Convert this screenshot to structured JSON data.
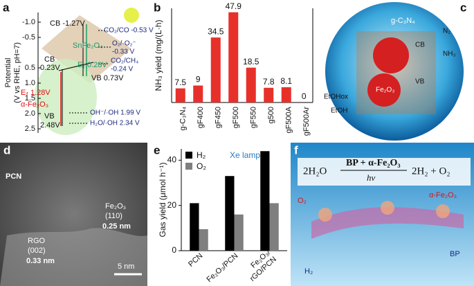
{
  "chart_data": [
    {
      "type": "bar",
      "y_label": "NH₃ yield (mg/(L·h)",
      "categories": [
        "g-C₃N₄",
        "gF400",
        "gF450",
        "gF500",
        "gF550",
        "g500",
        "gF500A",
        "gF500Ar"
      ],
      "values": [
        7.5,
        9,
        34.5,
        47.9,
        18.5,
        7.8,
        8.1,
        0
      ],
      "color": "#e8302a",
      "ylim": [
        0,
        50
      ]
    },
    {
      "type": "bar",
      "y_label": "Gas yield (μmol h⁻¹)",
      "annotation": "Xe lamp",
      "categories": [
        "PCN",
        "Fe₂O₃/PCN",
        "Fe₂O₃/rGO/PCN"
      ],
      "series": [
        {
          "name": "H₂",
          "color": "#000000",
          "values": [
            21,
            33,
            44
          ]
        },
        {
          "name": "O₂",
          "color": "#7f7f7f",
          "values": [
            9.5,
            16,
            21
          ]
        }
      ],
      "ylim": [
        0,
        45
      ],
      "yticks": [
        0,
        20,
        40
      ],
      "legend": "upper left"
    }
  ],
  "figure": {
    "panel_labels": [
      "a",
      "b",
      "c",
      "d",
      "e",
      "f"
    ],
    "panel_a": {
      "axis_label": [
        "Potential",
        "(V vs RHE, pH=7)"
      ],
      "ticks": [
        "-1.0",
        "-0.5",
        "0.5",
        "1.0",
        "1.5",
        "2.0",
        "2.5"
      ],
      "texts": [
        "CB -1.27V",
        "SnFe₂O₄",
        "CO₂/CO -0.53 V",
        "O₂/·O₂⁻",
        "-0.33 V",
        "CO₂/CH₄",
        "-0.24 V",
        "E",
        "f",
        "0.28V",
        "CB",
        "0.23V",
        "VB 0.73V",
        "E",
        "f",
        "1.28V",
        "α-Fe₂O₃",
        "VB",
        "2.48V",
        "OH⁻/·OH 1.99 V",
        "H₂O/·OH 2.34 V"
      ]
    },
    "panel_c": {
      "texts": [
        "g-C₃N₄",
        "N₂",
        "NH₃",
        "EtOHox",
        "EtOH",
        "CB",
        "VB",
        "Fe₂O₃"
      ]
    },
    "panel_d": {
      "texts": [
        "PCN",
        "RGO",
        "(002)",
        "0.33 nm",
        "Fe₂O₃",
        "(110)",
        "0.25 nm",
        "5 nm"
      ]
    },
    "panel_f": {
      "texts": [
        "2H₂O",
        "BP + α-Fe₂O₃",
        "hν",
        "2H₂ + O₂",
        "α-Fe₂O₃",
        "O₂",
        "H₂",
        "BP"
      ]
    }
  }
}
